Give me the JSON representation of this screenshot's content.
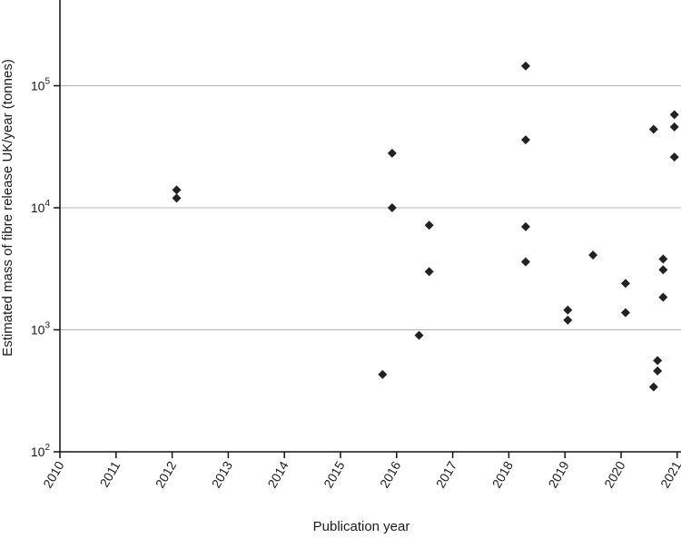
{
  "chart_data": {
    "type": "scatter",
    "title": "",
    "xlabel": "Publication year",
    "ylabel": "Estimated mass of fibre release UK/year (tonnes)",
    "xlim": [
      2010,
      2021
    ],
    "ylim": [
      100,
      500000
    ],
    "y_scale": "log",
    "grid": "horizontal at decades",
    "x_ticks": [
      "2010",
      "2011",
      "2012",
      "2013",
      "2014",
      "2015",
      "2016",
      "2017",
      "2018",
      "2019",
      "2020",
      "2021"
    ],
    "y_ticks": [
      {
        "base": "10",
        "exp": "2",
        "value": 100
      },
      {
        "base": "10",
        "exp": "3",
        "value": 1000
      },
      {
        "base": "10",
        "exp": "4",
        "value": 10000
      },
      {
        "base": "10",
        "exp": "5",
        "value": 100000
      }
    ],
    "marker": "diamond",
    "marker_color": "#222222",
    "points": [
      {
        "x": 2012.08,
        "y": 14000
      },
      {
        "x": 2012.08,
        "y": 12000
      },
      {
        "x": 2015.75,
        "y": 430
      },
      {
        "x": 2015.92,
        "y": 28000
      },
      {
        "x": 2015.92,
        "y": 10000
      },
      {
        "x": 2016.4,
        "y": 900
      },
      {
        "x": 2016.58,
        "y": 7200
      },
      {
        "x": 2016.58,
        "y": 3000
      },
      {
        "x": 2018.3,
        "y": 145000
      },
      {
        "x": 2018.3,
        "y": 36000
      },
      {
        "x": 2018.3,
        "y": 7000
      },
      {
        "x": 2018.3,
        "y": 3600
      },
      {
        "x": 2019.05,
        "y": 1450
      },
      {
        "x": 2019.05,
        "y": 1200
      },
      {
        "x": 2019.5,
        "y": 4100
      },
      {
        "x": 2020.08,
        "y": 2400
      },
      {
        "x": 2020.08,
        "y": 1380
      },
      {
        "x": 2020.58,
        "y": 44000
      },
      {
        "x": 2020.58,
        "y": 340
      },
      {
        "x": 2020.65,
        "y": 560
      },
      {
        "x": 2020.65,
        "y": 460
      },
      {
        "x": 2020.75,
        "y": 3800
      },
      {
        "x": 2020.75,
        "y": 3100
      },
      {
        "x": 2020.75,
        "y": 1850
      },
      {
        "x": 2020.95,
        "y": 58000
      },
      {
        "x": 2020.95,
        "y": 46000
      },
      {
        "x": 2020.95,
        "y": 26000
      }
    ]
  }
}
